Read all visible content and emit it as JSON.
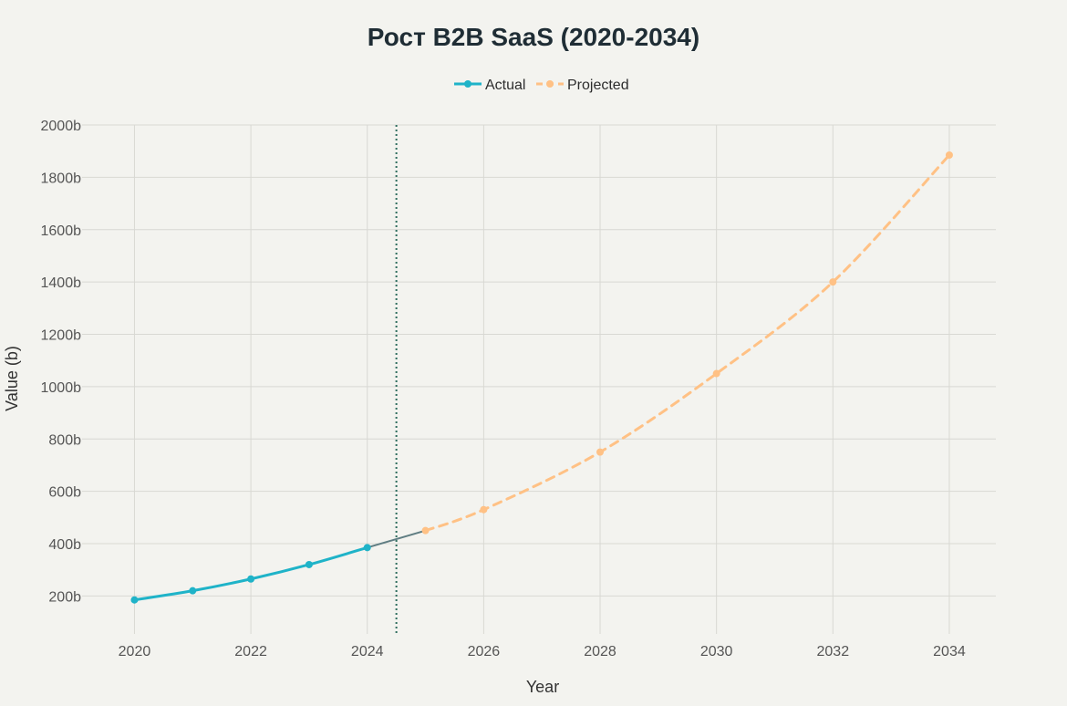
{
  "chart_data": {
    "type": "line",
    "title": "Рост B2B SaaS (2020-2034)",
    "xlabel": "Year",
    "ylabel": "Value (b)",
    "xlim": [
      2019.1,
      2034.8
    ],
    "ylim": [
      55,
      2000
    ],
    "x_ticks": [
      2020,
      2022,
      2024,
      2026,
      2028,
      2030,
      2032,
      2034
    ],
    "y_ticks": [
      200,
      400,
      600,
      800,
      1000,
      1200,
      1400,
      1600,
      1800,
      2000
    ],
    "y_tick_suffix": "b",
    "grid": true,
    "legend_position": "top-center",
    "divider_x": 2024.5,
    "series": [
      {
        "name": "Actual",
        "color": "#1fb3c8",
        "style": "solid",
        "x": [
          2020,
          2021,
          2022,
          2023,
          2024
        ],
        "values": [
          185,
          220,
          265,
          320,
          385
        ]
      },
      {
        "name": "Projected",
        "color": "#ffc185",
        "style": "dashed",
        "x": [
          2025,
          2026,
          2028,
          2030,
          2032,
          2034
        ],
        "values": [
          450,
          530,
          750,
          1050,
          1400,
          1885
        ]
      }
    ],
    "connector": {
      "color": "#5f7d82",
      "x": [
        2024,
        2025
      ],
      "values": [
        385,
        450
      ]
    },
    "divider_color": "#2f6e5f"
  }
}
